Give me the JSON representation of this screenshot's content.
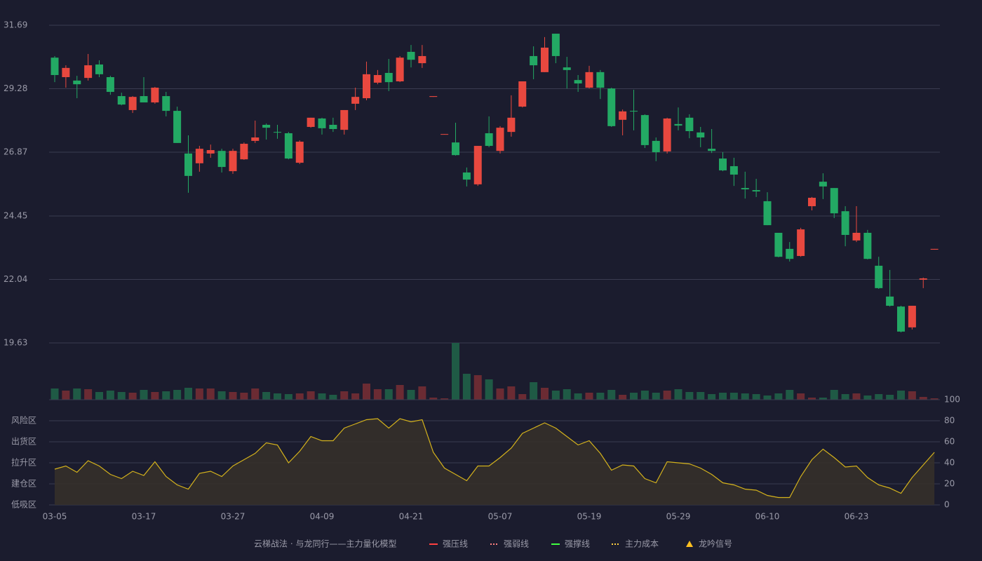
{
  "chart_data": [
    {
      "type": "candlestick",
      "categories": [
        "03-05",
        null,
        null,
        null,
        null,
        null,
        null,
        null,
        "03-17",
        null,
        null,
        null,
        null,
        null,
        null,
        null,
        "03-27",
        null,
        null,
        null,
        null,
        null,
        null,
        null,
        "04-09",
        null,
        null,
        null,
        null,
        null,
        null,
        null,
        "04-21",
        null,
        null,
        null,
        null,
        null,
        null,
        null,
        "05-07",
        null,
        null,
        null,
        null,
        null,
        null,
        null,
        "05-19",
        null,
        null,
        null,
        null,
        null,
        null,
        null,
        "05-29",
        null,
        null,
        null,
        null,
        null,
        null,
        null,
        "06-10",
        null,
        null,
        null,
        null,
        null,
        null,
        null,
        "06-23",
        null,
        null,
        null,
        null,
        null,
        null,
        null
      ],
      "open": [
        30.46,
        29.72,
        29.59,
        29.69,
        30.2,
        29.72,
        29.0,
        28.47,
        29.0,
        28.76,
        29.0,
        28.44,
        26.82,
        26.45,
        26.82,
        26.92,
        26.15,
        26.6,
        27.3,
        27.91,
        27.64,
        27.59,
        26.47,
        27.83,
        28.15,
        27.91,
        27.72,
        28.71,
        28.92,
        29.51,
        29.88,
        29.56,
        30.68,
        30.25,
        28.97,
        27.54,
        27.24,
        26.1,
        25.65,
        27.59,
        26.92,
        27.64,
        28.6,
        30.52,
        29.91,
        31.37,
        30.09,
        29.61,
        29.32,
        29.91,
        29.29,
        28.1,
        28.44,
        28.28,
        27.3,
        26.9,
        27.94,
        28.18,
        27.62,
        27.0,
        26.63,
        26.34,
        25.51,
        25.43,
        25.01,
        23.81,
        23.2,
        22.93,
        24.82,
        25.75,
        25.51,
        24.63,
        23.52,
        23.81,
        22.56,
        21.39,
        21.01,
        20.22,
        22.03,
        23.17
      ],
      "high": [
        30.52,
        30.17,
        29.77,
        30.6,
        30.36,
        29.77,
        29.13,
        29.0,
        29.72,
        29.35,
        29.16,
        28.6,
        27.51,
        27.11,
        27.16,
        27.0,
        27.0,
        27.24,
        28.07,
        27.96,
        27.91,
        27.64,
        27.32,
        28.18,
        28.18,
        28.18,
        28.47,
        29.32,
        30.31,
        29.99,
        30.41,
        30.52,
        30.94,
        30.94,
        29.0,
        27.56,
        27.99,
        26.29,
        27.11,
        28.23,
        27.86,
        29.03,
        29.56,
        30.89,
        31.24,
        31.37,
        30.49,
        29.8,
        30.15,
        29.99,
        29.32,
        28.49,
        29.24,
        28.31,
        27.43,
        28.18,
        28.57,
        28.31,
        27.83,
        27.75,
        26.87,
        26.66,
        26.13,
        25.86,
        25.35,
        23.81,
        23.46,
        24.0,
        25.17,
        26.07,
        25.51,
        24.82,
        24.82,
        23.92,
        22.9,
        22.4,
        21.04,
        21.04,
        22.11,
        23.2
      ],
      "low": [
        29.53,
        29.32,
        28.92,
        29.59,
        29.72,
        29.05,
        28.65,
        28.36,
        28.76,
        28.71,
        28.23,
        27.22,
        25.33,
        26.13,
        26.66,
        26.1,
        26.05,
        26.58,
        27.22,
        27.35,
        27.38,
        26.6,
        26.42,
        27.8,
        27.54,
        27.64,
        27.54,
        28.47,
        28.84,
        29.45,
        29.19,
        29.53,
        30.09,
        30.07,
        28.97,
        27.54,
        26.74,
        25.57,
        25.59,
        27.06,
        26.82,
        27.46,
        28.57,
        29.64,
        29.91,
        30.25,
        29.29,
        29.16,
        29.29,
        28.89,
        27.83,
        27.51,
        27.7,
        27.03,
        26.53,
        26.82,
        27.7,
        27.4,
        27.06,
        26.84,
        26.15,
        25.59,
        25.11,
        25.17,
        24.1,
        22.88,
        22.72,
        22.9,
        24.66,
        25.09,
        24.37,
        23.3,
        23.46,
        22.8,
        21.68,
        21.01,
        20.03,
        20.14,
        21.71,
        23.17
      ],
      "close": [
        29.8,
        30.07,
        29.45,
        30.17,
        29.83,
        29.16,
        28.68,
        28.97,
        28.76,
        29.32,
        28.44,
        27.22,
        25.97,
        27.0,
        26.95,
        26.31,
        26.92,
        27.19,
        27.43,
        27.8,
        27.62,
        26.63,
        27.27,
        28.18,
        27.78,
        27.75,
        28.47,
        28.97,
        29.83,
        29.8,
        29.53,
        30.46,
        30.38,
        30.52,
        29.0,
        27.56,
        26.76,
        25.83,
        27.11,
        27.11,
        27.8,
        28.18,
        29.56,
        30.17,
        30.84,
        30.52,
        29.99,
        29.48,
        29.91,
        29.32,
        27.86,
        28.42,
        28.42,
        27.14,
        26.87,
        28.15,
        27.88,
        27.67,
        27.43,
        26.92,
        26.18,
        26.02,
        25.46,
        25.38,
        24.1,
        22.9,
        22.82,
        23.94,
        25.14,
        25.57,
        24.55,
        23.73,
        23.81,
        22.82,
        21.71,
        21.04,
        20.06,
        21.04,
        22.08,
        23.2
      ],
      "up_color": "#e8483f",
      "down_color": "#23a964",
      "ylim": [
        19.63,
        31.69
      ],
      "yticks": [
        31.69,
        29.28,
        26.87,
        24.45,
        22.04,
        19.63
      ],
      "grid": true
    },
    {
      "type": "bar",
      "values": [
        16,
        13,
        16,
        15,
        11,
        13,
        11,
        10,
        14,
        11,
        12,
        14,
        17,
        16,
        16,
        12,
        11,
        10,
        16,
        11,
        9,
        8,
        9,
        12,
        9,
        7,
        12,
        9,
        23,
        15,
        15,
        21,
        14,
        19,
        3,
        2,
        81,
        37,
        35,
        29,
        16,
        19,
        8,
        25,
        17,
        13,
        15,
        9,
        10,
        10,
        14,
        7,
        10,
        13,
        10,
        13,
        15,
        11,
        11,
        8,
        10,
        10,
        9,
        8,
        6,
        9,
        14,
        9,
        3,
        3,
        14,
        8,
        9,
        6,
        8,
        7,
        13,
        12,
        4,
        2
      ],
      "up_color": "#6b2b33",
      "down_color": "#1f5a45",
      "ylim": [
        0,
        81
      ]
    },
    {
      "type": "line",
      "values": [
        34,
        37,
        31,
        42,
        37,
        29,
        25,
        32,
        28,
        41,
        27,
        19,
        15,
        30,
        32,
        27,
        37,
        43,
        49,
        59,
        57,
        40,
        51,
        65,
        61,
        61,
        73,
        77,
        81,
        82,
        73,
        82,
        79,
        81,
        50,
        35,
        29,
        23,
        37,
        37,
        45,
        54,
        68,
        73,
        78,
        73,
        65,
        57,
        61,
        49,
        33,
        38,
        37,
        25,
        21,
        41,
        40,
        39,
        35,
        29,
        21,
        19,
        15,
        14,
        9,
        7,
        7,
        27,
        43,
        53,
        45,
        36,
        37,
        26,
        19,
        16,
        11,
        26,
        38,
        50
      ],
      "color": "#d4b21c",
      "fill": "#35302a",
      "ylim": [
        0,
        100
      ],
      "yticks": [
        0,
        20,
        40,
        60,
        80,
        100
      ],
      "ytick_colors": [
        "#e84848",
        "#d0d040",
        "#4a8ae8",
        "#e040e0",
        "#e8a23a",
        "#5ed65e"
      ],
      "zones": [
        {
          "label": "风险区",
          "value": 80,
          "color": "#e8a23a"
        },
        {
          "label": "出货区",
          "value": 60,
          "color": "#e040e0"
        },
        {
          "label": "拉升区",
          "value": 40,
          "color": "#4a8ae8"
        },
        {
          "label": "建仓区",
          "value": 20,
          "color": "#e84848"
        },
        {
          "label": "低吸区",
          "value": 0,
          "color": "#e84848"
        }
      ]
    }
  ],
  "legend": {
    "title": "云梯战法 · 与龙同行——主力量化模型",
    "title_color": "#e8c86a",
    "items": [
      {
        "name": "强压线",
        "color": "#ff4040",
        "style": "solid"
      },
      {
        "name": "强弱线",
        "color": "#ff8080",
        "style": "dashed"
      },
      {
        "name": "强撑线",
        "color": "#40ff40",
        "style": "solid"
      },
      {
        "name": "主力成本",
        "color": "#ffd040",
        "style": "dashed"
      },
      {
        "name": "龙吟信号",
        "color": "#ffc020",
        "style": "triangle"
      }
    ]
  }
}
